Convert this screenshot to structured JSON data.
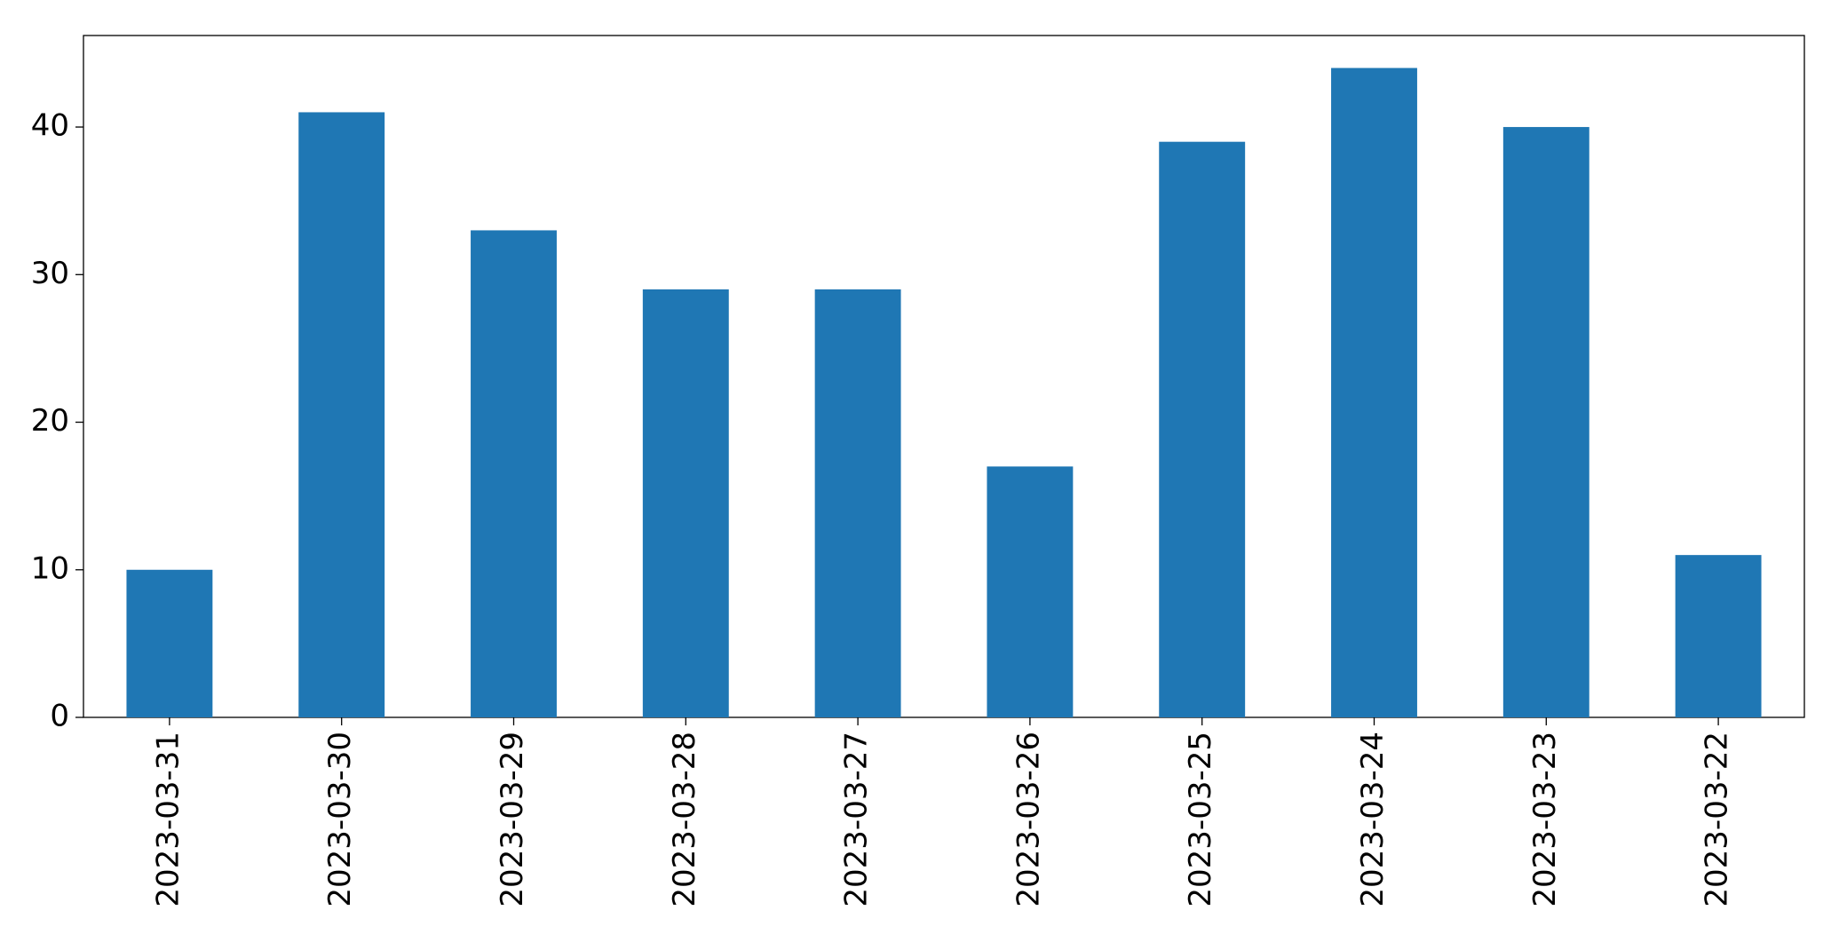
{
  "chart_data": {
    "type": "bar",
    "categories": [
      "2023-03-31",
      "2023-03-30",
      "2023-03-29",
      "2023-03-28",
      "2023-03-27",
      "2023-03-26",
      "2023-03-25",
      "2023-03-24",
      "2023-03-23",
      "2023-03-22"
    ],
    "values": [
      10,
      41,
      33,
      29,
      29,
      17,
      39,
      44,
      40,
      11
    ],
    "color": "#1f77b4",
    "ylim": [
      0,
      46.2
    ],
    "yticks": [
      0,
      10,
      20,
      30,
      40
    ],
    "grid": false
  }
}
